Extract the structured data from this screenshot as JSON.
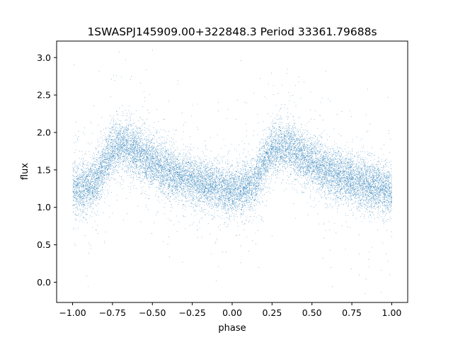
{
  "chart_data": {
    "type": "scatter",
    "title": "1SWASPJ145909.00+322848.3 Period 33361.79688s",
    "xlabel": "phase",
    "ylabel": "flux",
    "xlim": [
      -1.1,
      1.1
    ],
    "ylim": [
      -0.27,
      3.22
    ],
    "x_ticks": [
      -1.0,
      -0.75,
      -0.5,
      -0.25,
      0.0,
      0.25,
      0.5,
      0.75,
      1.0
    ],
    "x_tick_labels": [
      "−1.00",
      "−0.75",
      "−0.50",
      "−0.25",
      "0.00",
      "0.25",
      "0.50",
      "0.75",
      "1.00"
    ],
    "y_ticks": [
      0.0,
      0.5,
      1.0,
      1.5,
      2.0,
      2.5,
      3.0
    ],
    "y_tick_labels": [
      "0.0",
      "0.5",
      "1.0",
      "1.5",
      "2.0",
      "2.5",
      "3.0"
    ],
    "marker_color": "#1f77b4",
    "grid": false,
    "legend": "none",
    "series": [
      {
        "phase_range": [
          -1.0,
          1.0
        ],
        "profile": {
          "phase": [
            0.0,
            0.05,
            0.1,
            0.15,
            0.2,
            0.25,
            0.3,
            0.35,
            0.4,
            0.45,
            0.5,
            0.55,
            0.6,
            0.65,
            0.7,
            0.75,
            0.8,
            0.85,
            0.9,
            0.95,
            1.0
          ],
          "flux": [
            1.22,
            1.25,
            1.28,
            1.35,
            1.6,
            1.78,
            1.84,
            1.82,
            1.74,
            1.66,
            1.6,
            1.54,
            1.48,
            1.43,
            1.4,
            1.36,
            1.33,
            1.3,
            1.28,
            1.25,
            1.22
          ]
        },
        "scatter": 0.17,
        "n_points": 16000
      }
    ]
  }
}
